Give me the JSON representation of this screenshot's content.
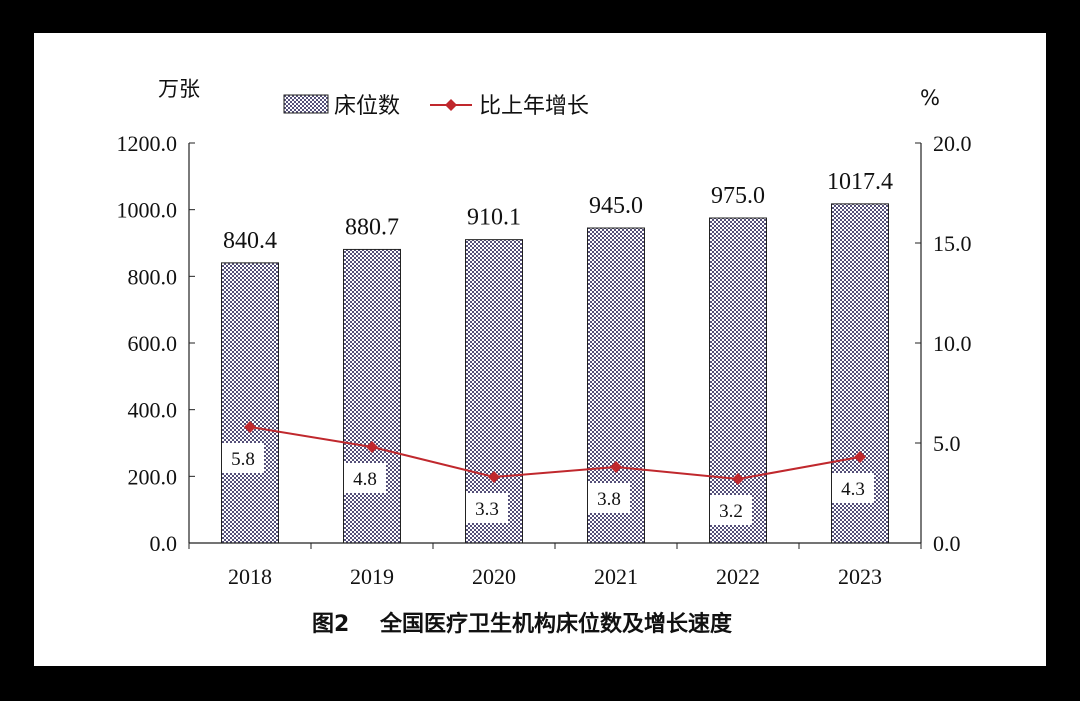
{
  "chart_data": {
    "type": "bar+line",
    "title": "图2    全国医疗卫生机构床位数及增长速度",
    "categories": [
      "2018",
      "2019",
      "2020",
      "2021",
      "2022",
      "2023"
    ],
    "series": [
      {
        "name": "床位数",
        "type": "bar",
        "axis": "left",
        "values": [
          840.4,
          880.7,
          910.1,
          945.0,
          975.0,
          1017.4
        ],
        "labels": [
          "840.4",
          "880.7",
          "910.1",
          "945.0",
          "975.0",
          "1017.4"
        ]
      },
      {
        "name": "比上年增长",
        "type": "line",
        "axis": "right",
        "values": [
          5.8,
          4.8,
          3.3,
          3.8,
          3.2,
          4.3
        ],
        "labels": [
          "5.8",
          "4.8",
          "3.3",
          "3.8",
          "3.2",
          "4.3"
        ]
      }
    ],
    "left_axis": {
      "unit": "万张",
      "ylim": [
        0,
        1200
      ],
      "ticks": [
        "0.0",
        "200.0",
        "400.0",
        "600.0",
        "800.0",
        "1000.0",
        "1200.0"
      ]
    },
    "right_axis": {
      "unit": "%",
      "ylim": [
        0,
        20
      ],
      "ticks": [
        "0.0",
        "5.0",
        "10.0",
        "15.0",
        "20.0"
      ]
    },
    "legend_placement": "top-center",
    "grid": false,
    "colors": {
      "bar_fill": "#55507a",
      "bar_bg": "#ffffff",
      "line": "#c0282d",
      "axis": "#222222"
    }
  }
}
